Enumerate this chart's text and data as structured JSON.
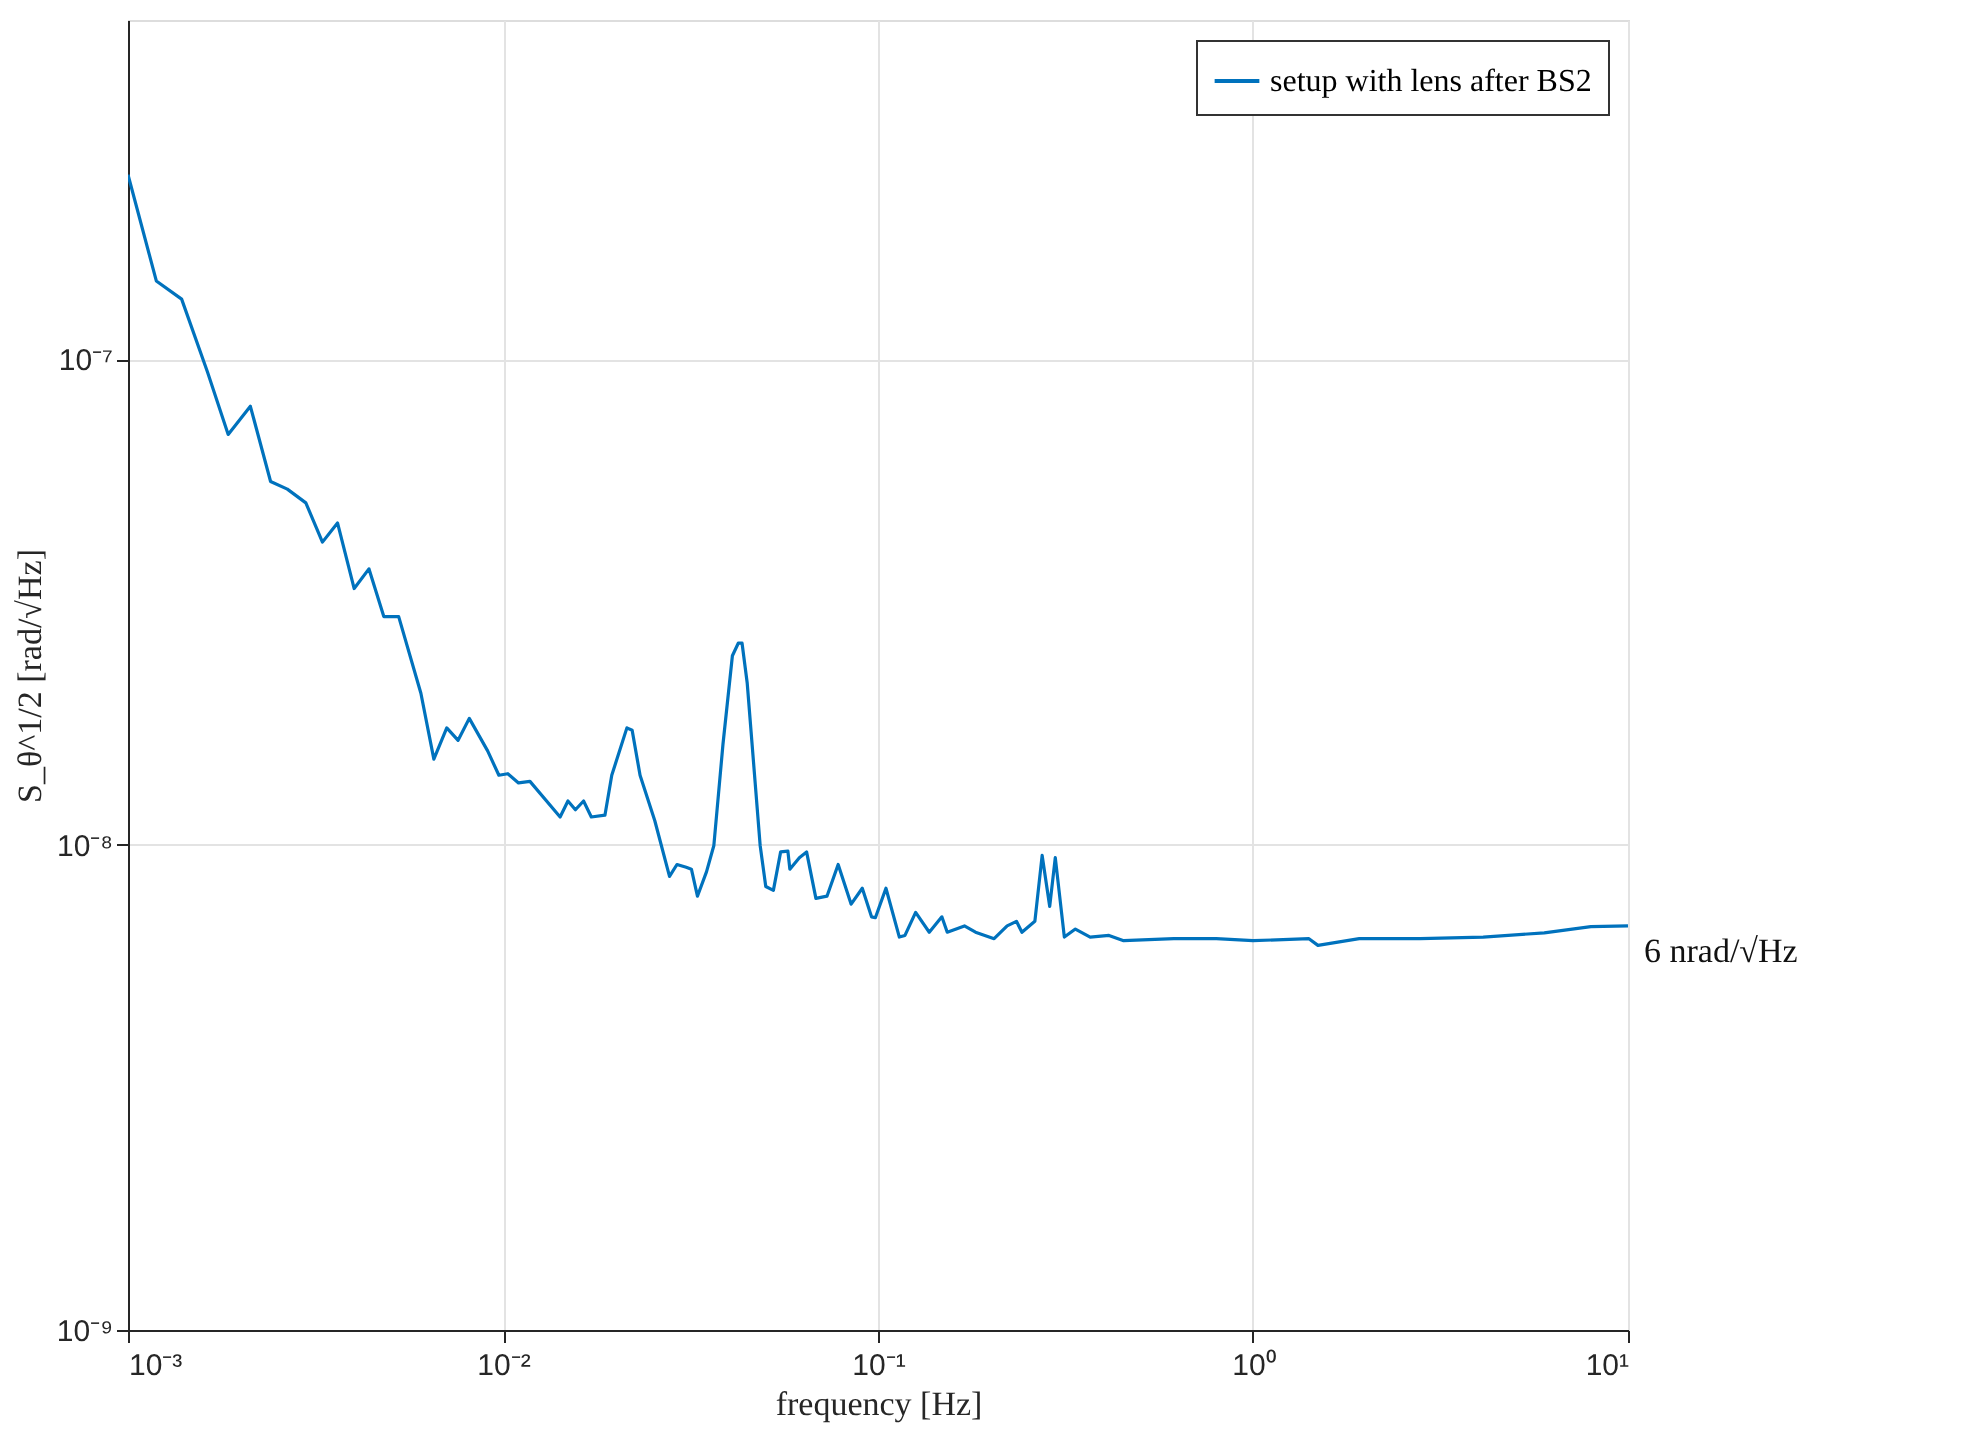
{
  "chart_data": {
    "type": "line",
    "xlabel": "frequency [Hz]",
    "ylabel": "S_θ^1/2 [rad/√Hz]",
    "log": "xy",
    "grid": true,
    "legend": "top right",
    "line_style": "solid",
    "marker": "none",
    "xlim": [
      0.001,
      10
    ],
    "ylim": [
      1e-09,
      5e-07
    ],
    "xticks": [
      {
        "value": 0.001,
        "label": "10⁻³"
      },
      {
        "value": 0.01,
        "label": "10⁻²"
      },
      {
        "value": 0.1,
        "label": "10⁻¹"
      },
      {
        "value": 1,
        "label": "10⁰"
      },
      {
        "value": 10,
        "label": "10¹"
      }
    ],
    "yticks": [
      {
        "value": 1e-09,
        "label": "10⁻⁹"
      },
      {
        "value": 1e-08,
        "label": "10⁻⁸"
      },
      {
        "value": 1e-07,
        "label": "10⁻⁷"
      }
    ],
    "annotations": [
      "6 nrad/√Hz"
    ],
    "x": [
      0.001,
      0.00119,
      0.00139,
      0.00163,
      0.00185,
      0.00212,
      0.0024,
      0.00266,
      0.00298,
      0.0033,
      0.00362,
      0.00401,
      0.00439,
      0.00481,
      0.00527,
      0.00604,
      0.00654,
      0.00708,
      0.00759,
      0.00813,
      0.0091,
      0.00975,
      0.0103,
      0.011,
      0.0118,
      0.0142,
      0.0149,
      0.0156,
      0.0164,
      0.0172,
      0.0187,
      0.0195,
      0.0214,
      0.0221,
      0.0232,
      0.0254,
      0.0278,
      0.0291,
      0.0308,
      0.0318,
      0.033,
      0.0349,
      0.0365,
      0.0386,
      0.0409,
      0.0424,
      0.0434,
      0.0448,
      0.0485,
      0.0502,
      0.0526,
      0.055,
      0.0575,
      0.0582,
      0.0617,
      0.0645,
      0.0683,
      0.0731,
      0.0783,
      0.0848,
      0.0908,
      0.0961,
      0.0984,
      0.105,
      0.114,
      0.118,
      0.126,
      0.137,
      0.148,
      0.153,
      0.17,
      0.182,
      0.204,
      0.221,
      0.234,
      0.242,
      0.262,
      0.274,
      0.287,
      0.297,
      0.314,
      0.336,
      0.368,
      0.413,
      0.452,
      0.615,
      0.798,
      1.0,
      1.41,
      1.49,
      1.92,
      2.79,
      4.11,
      5.98,
      7.96,
      10
    ],
    "series": [
      {
        "name": "setup with lens after BS2",
        "color": "#0072bd",
        "values": [
          2.4e-07,
          1.45e-07,
          1.33e-07,
          9.4e-08,
          7e-08,
          8e-08,
          5.6e-08,
          5.4e-08,
          5.06e-08,
          4.2e-08,
          4.6e-08,
          3.37e-08,
          3.7e-08,
          2.95e-08,
          2.95e-08,
          2.05e-08,
          1.5e-08,
          1.74e-08,
          1.64e-08,
          1.82e-08,
          1.56e-08,
          1.39e-08,
          1.4e-08,
          1.34e-08,
          1.35e-08,
          1.14e-08,
          1.23e-08,
          1.18e-08,
          1.23e-08,
          1.14e-08,
          1.15e-08,
          1.39e-08,
          1.74e-08,
          1.72e-08,
          1.39e-08,
          1.12e-08,
          8.6e-09,
          9.1e-09,
          8.98e-09,
          8.9e-09,
          7.83e-09,
          8.8e-09,
          9.96e-09,
          1.61e-08,
          2.45e-08,
          2.6e-08,
          2.6e-08,
          2.15e-08,
          9.96e-09,
          8.2e-09,
          8.05e-09,
          9.66e-09,
          9.7e-09,
          8.9e-09,
          9.4e-09,
          9.66e-09,
          7.75e-09,
          7.83e-09,
          9.1e-09,
          7.54e-09,
          8.13e-09,
          7.1e-09,
          7.07e-09,
          8.13e-09,
          6.45e-09,
          6.5e-09,
          7.25e-09,
          6.6e-09,
          7.1e-09,
          6.6e-09,
          6.8e-09,
          6.6e-09,
          6.4e-09,
          6.8e-09,
          6.95e-09,
          6.6e-09,
          6.95e-09,
          9.5e-09,
          7.46e-09,
          9.4e-09,
          6.45e-09,
          6.7e-09,
          6.45e-09,
          6.5e-09,
          6.34e-09,
          6.4e-09,
          6.4e-09,
          6.34e-09,
          6.4e-09,
          6.2e-09,
          6.4e-09,
          6.4e-09,
          6.45e-09,
          6.58e-09,
          6.78e-09,
          6.8e-09
        ]
      }
    ]
  }
}
